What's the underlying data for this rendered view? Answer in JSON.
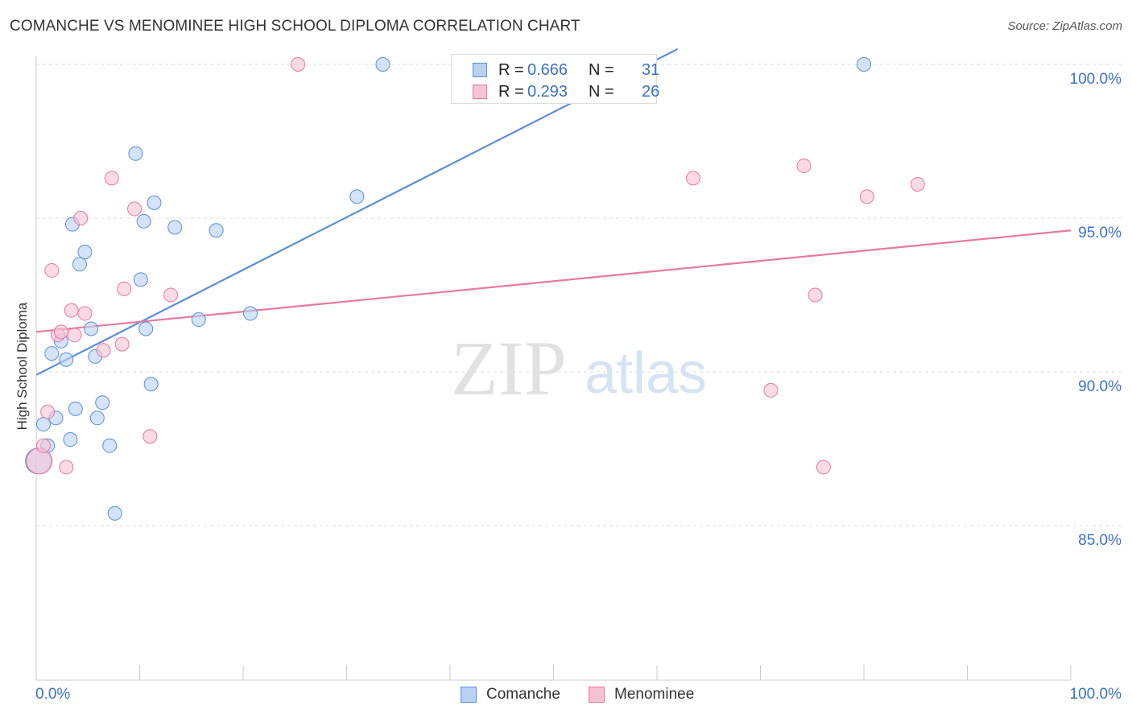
{
  "header": {
    "title": "COMANCHE VS MENOMINEE HIGH SCHOOL DIPLOMA CORRELATION CHART",
    "source": "Source: ZipAtlas.com"
  },
  "watermark": {
    "zip": "ZIP",
    "atlas": "atlas"
  },
  "stats": {
    "r_label": "R =",
    "n_label": "N =",
    "rows": [
      {
        "series": "Comanche",
        "r": "0.666",
        "n": "31",
        "color": "#5b8fd6",
        "fill": "#b8d1f3"
      },
      {
        "series": "Menominee",
        "r": "0.293",
        "n": "26",
        "color": "#e7799e",
        "fill": "#f7c3d4"
      }
    ]
  },
  "chart_data": {
    "type": "scatter",
    "title": "COMANCHE VS MENOMINEE HIGH SCHOOL DIPLOMA CORRELATION CHART",
    "xlabel": "",
    "ylabel": "High School Diploma",
    "xlim": [
      0,
      100
    ],
    "ylim": [
      80.0,
      100.5
    ],
    "x_tick_labels": [
      "0.0%",
      "100.0%"
    ],
    "y_ticks": [
      85.0,
      90.0,
      95.0,
      100.0
    ],
    "y_tick_labels": [
      "85.0%",
      "90.0%",
      "95.0%",
      "100.0%"
    ],
    "grid": true,
    "legend_position": "bottom",
    "series": [
      {
        "name": "Comanche",
        "color": "#5b8fd6",
        "fill": "#b8d1f3",
        "trend": {
          "x": [
            0,
            62
          ],
          "y": [
            89.9,
            100.5
          ]
        },
        "points": [
          {
            "x": 0.2,
            "y": 87.1,
            "big": true
          },
          {
            "x": 0.7,
            "y": 88.3
          },
          {
            "x": 1.1,
            "y": 87.6
          },
          {
            "x": 1.5,
            "y": 90.6
          },
          {
            "x": 1.9,
            "y": 88.5
          },
          {
            "x": 2.4,
            "y": 91.0
          },
          {
            "x": 2.9,
            "y": 90.4
          },
          {
            "x": 3.3,
            "y": 87.8
          },
          {
            "x": 3.5,
            "y": 94.8
          },
          {
            "x": 3.8,
            "y": 88.8
          },
          {
            "x": 4.2,
            "y": 93.5
          },
          {
            "x": 4.7,
            "y": 93.9
          },
          {
            "x": 5.3,
            "y": 91.4
          },
          {
            "x": 5.7,
            "y": 90.5
          },
          {
            "x": 5.9,
            "y": 88.5
          },
          {
            "x": 6.4,
            "y": 89.0
          },
          {
            "x": 7.1,
            "y": 87.6
          },
          {
            "x": 7.6,
            "y": 85.4
          },
          {
            "x": 9.6,
            "y": 97.1
          },
          {
            "x": 10.1,
            "y": 93.0
          },
          {
            "x": 10.4,
            "y": 94.9
          },
          {
            "x": 10.6,
            "y": 91.4
          },
          {
            "x": 11.1,
            "y": 89.6
          },
          {
            "x": 11.4,
            "y": 95.5
          },
          {
            "x": 13.4,
            "y": 94.7
          },
          {
            "x": 15.7,
            "y": 91.7
          },
          {
            "x": 17.4,
            "y": 94.6
          },
          {
            "x": 20.7,
            "y": 91.9
          },
          {
            "x": 31.0,
            "y": 95.7
          },
          {
            "x": 33.5,
            "y": 100.0
          },
          {
            "x": 80.0,
            "y": 100.0
          }
        ]
      },
      {
        "name": "Menominee",
        "color": "#e7799e",
        "fill": "#f7c3d4",
        "trend": {
          "x": [
            0,
            100
          ],
          "y": [
            91.3,
            94.6
          ]
        },
        "points": [
          {
            "x": 0.3,
            "y": 87.1,
            "big": true
          },
          {
            "x": 0.7,
            "y": 87.6
          },
          {
            "x": 1.1,
            "y": 88.7
          },
          {
            "x": 1.5,
            "y": 93.3
          },
          {
            "x": 2.1,
            "y": 91.2
          },
          {
            "x": 2.4,
            "y": 91.3
          },
          {
            "x": 2.9,
            "y": 86.9
          },
          {
            "x": 3.4,
            "y": 92.0
          },
          {
            "x": 3.7,
            "y": 91.2
          },
          {
            "x": 4.3,
            "y": 95.0
          },
          {
            "x": 4.7,
            "y": 91.9
          },
          {
            "x": 6.5,
            "y": 90.7
          },
          {
            "x": 7.3,
            "y": 96.3
          },
          {
            "x": 8.3,
            "y": 90.9
          },
          {
            "x": 8.5,
            "y": 92.7
          },
          {
            "x": 9.5,
            "y": 95.3
          },
          {
            "x": 11.0,
            "y": 87.9
          },
          {
            "x": 13.0,
            "y": 92.5
          },
          {
            "x": 25.3,
            "y": 100.0
          },
          {
            "x": 63.5,
            "y": 96.3
          },
          {
            "x": 71.0,
            "y": 89.4
          },
          {
            "x": 74.2,
            "y": 96.7
          },
          {
            "x": 75.3,
            "y": 92.5
          },
          {
            "x": 76.1,
            "y": 86.9
          },
          {
            "x": 80.3,
            "y": 95.7
          },
          {
            "x": 85.2,
            "y": 96.1
          }
        ]
      }
    ]
  }
}
